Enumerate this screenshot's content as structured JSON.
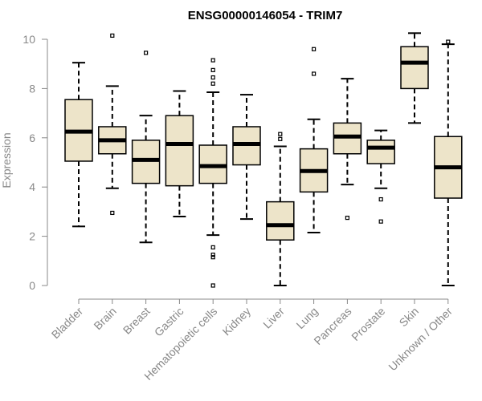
{
  "chart_data": {
    "type": "box",
    "title": "ENSG00000146054 - TRIM7",
    "ylabel": "Expression",
    "xlabel": "",
    "ylim": [
      0,
      10.5
    ],
    "yticks": [
      0,
      2,
      4,
      6,
      8,
      10
    ],
    "categories": [
      "Bladder",
      "Brain",
      "Breast",
      "Gastric",
      "Hematopoietic cells",
      "Kidney",
      "Liver",
      "Lung",
      "Pancreas",
      "Prostate",
      "Skin",
      "Unknown / Other"
    ],
    "boxes": [
      {
        "whisker_low": 2.4,
        "q1": 5.05,
        "median": 6.25,
        "q3": 7.55,
        "whisker_high": 9.05,
        "outliers": []
      },
      {
        "whisker_low": 3.95,
        "q1": 5.35,
        "median": 5.9,
        "q3": 6.45,
        "whisker_high": 8.1,
        "outliers": [
          2.95,
          10.15
        ]
      },
      {
        "whisker_low": 1.75,
        "q1": 4.15,
        "median": 5.1,
        "q3": 5.9,
        "whisker_high": 6.9,
        "outliers": [
          9.45
        ]
      },
      {
        "whisker_low": 2.8,
        "q1": 4.05,
        "median": 5.75,
        "q3": 6.9,
        "whisker_high": 7.9,
        "outliers": []
      },
      {
        "whisker_low": 2.05,
        "q1": 4.15,
        "median": 4.85,
        "q3": 5.7,
        "whisker_high": 7.85,
        "outliers": [
          0.0,
          1.15,
          1.25,
          1.55,
          8.2,
          8.45,
          8.75,
          9.15
        ]
      },
      {
        "whisker_low": 2.7,
        "q1": 4.9,
        "median": 5.75,
        "q3": 6.45,
        "whisker_high": 7.75,
        "outliers": []
      },
      {
        "whisker_low": 0.0,
        "q1": 1.85,
        "median": 2.45,
        "q3": 3.4,
        "whisker_high": 5.65,
        "outliers": [
          5.95,
          6.15
        ]
      },
      {
        "whisker_low": 2.15,
        "q1": 3.8,
        "median": 4.65,
        "q3": 5.55,
        "whisker_high": 6.75,
        "outliers": [
          8.6,
          9.6
        ]
      },
      {
        "whisker_low": 4.1,
        "q1": 5.35,
        "median": 6.05,
        "q3": 6.6,
        "whisker_high": 8.4,
        "outliers": [
          2.75
        ]
      },
      {
        "whisker_low": 3.95,
        "q1": 4.95,
        "median": 5.6,
        "q3": 5.9,
        "whisker_high": 6.3,
        "outliers": [
          2.6,
          3.5
        ]
      },
      {
        "whisker_low": 6.6,
        "q1": 8.0,
        "median": 9.05,
        "q3": 9.7,
        "whisker_high": 10.25,
        "outliers": []
      },
      {
        "whisker_low": 0.0,
        "q1": 3.55,
        "median": 4.8,
        "q3": 6.05,
        "whisker_high": 9.8,
        "outliers": [
          9.9
        ]
      }
    ],
    "colors": {
      "box_fill": "#ede4c9",
      "box_stroke": "#000000",
      "median": "#000000",
      "axis": "#888888",
      "tick_label": "#888888",
      "title": "#000000"
    }
  }
}
